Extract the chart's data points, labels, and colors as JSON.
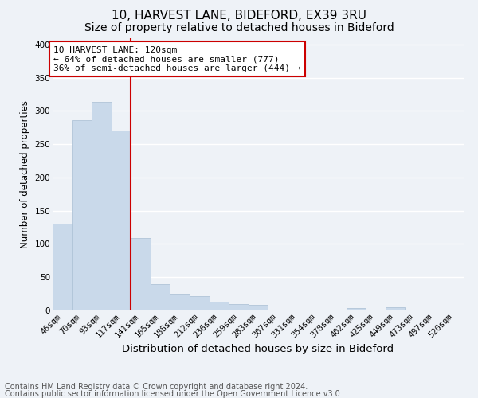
{
  "title1": "10, HARVEST LANE, BIDEFORD, EX39 3RU",
  "title2": "Size of property relative to detached houses in Bideford",
  "xlabel": "Distribution of detached houses by size in Bideford",
  "ylabel": "Number of detached properties",
  "bar_labels": [
    "46sqm",
    "70sqm",
    "93sqm",
    "117sqm",
    "141sqm",
    "165sqm",
    "188sqm",
    "212sqm",
    "236sqm",
    "259sqm",
    "283sqm",
    "307sqm",
    "331sqm",
    "354sqm",
    "378sqm",
    "402sqm",
    "425sqm",
    "449sqm",
    "473sqm",
    "497sqm",
    "520sqm"
  ],
  "bar_values": [
    130,
    286,
    314,
    270,
    109,
    40,
    25,
    22,
    13,
    10,
    8,
    0,
    0,
    0,
    0,
    4,
    0,
    5,
    0,
    0,
    0
  ],
  "bar_color": "#c9d9ea",
  "bar_edge_color": "#b0c4d8",
  "vline_x": 3.5,
  "vline_color": "#cc0000",
  "annotation_text": "10 HARVEST LANE: 120sqm\n← 64% of detached houses are smaller (777)\n36% of semi-detached houses are larger (444) →",
  "annotation_box_color": "#ffffff",
  "annotation_box_edge": "#cc0000",
  "ylim": [
    0,
    410
  ],
  "yticks": [
    0,
    50,
    100,
    150,
    200,
    250,
    300,
    350,
    400
  ],
  "footer1": "Contains HM Land Registry data © Crown copyright and database right 2024.",
  "footer2": "Contains public sector information licensed under the Open Government Licence v3.0.",
  "bg_color": "#eef2f7",
  "plot_bg_color": "#eef2f7",
  "grid_color": "#ffffff",
  "title1_fontsize": 11,
  "title2_fontsize": 10,
  "xlabel_fontsize": 9.5,
  "ylabel_fontsize": 8.5,
  "tick_fontsize": 7.5,
  "annot_fontsize": 8,
  "footer_fontsize": 7
}
